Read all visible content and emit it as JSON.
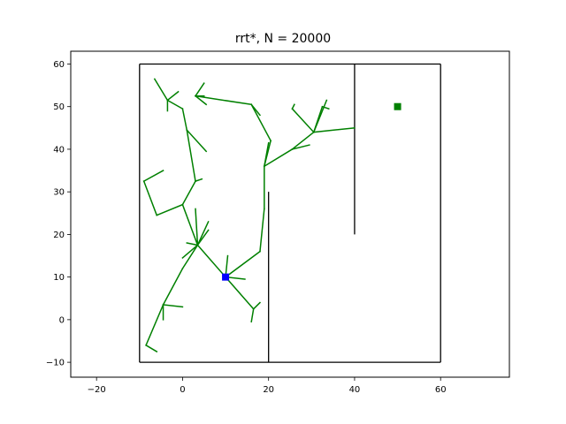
{
  "chart_data": {
    "type": "line",
    "title": "rrt*, N = 20000",
    "xlabel": "",
    "ylabel": "",
    "xlim": [
      -26,
      76
    ],
    "ylim": [
      -13.5,
      63
    ],
    "xticks": [
      -20,
      0,
      20,
      40,
      60
    ],
    "yticks": [
      -10,
      0,
      10,
      20,
      30,
      40,
      50,
      60
    ],
    "grid": false,
    "colors": {
      "tree": "#008000",
      "obstacle": "#000000",
      "start": "#0000ff",
      "goal": "#008000"
    },
    "obstacles": [
      {
        "name": "boundary-bottom",
        "points": [
          [
            -10,
            -10
          ],
          [
            60,
            -10
          ]
        ]
      },
      {
        "name": "boundary-top",
        "points": [
          [
            -10,
            60
          ],
          [
            60,
            60
          ]
        ]
      },
      {
        "name": "boundary-left",
        "points": [
          [
            -10,
            -10
          ],
          [
            -10,
            60
          ]
        ]
      },
      {
        "name": "boundary-right",
        "points": [
          [
            60,
            -10
          ],
          [
            60,
            60
          ]
        ]
      },
      {
        "name": "wall-x20",
        "points": [
          [
            20,
            -10
          ],
          [
            20,
            30
          ]
        ]
      },
      {
        "name": "wall-x40",
        "points": [
          [
            40,
            20
          ],
          [
            40,
            60
          ]
        ]
      }
    ],
    "tree_edges": [
      [
        [
          10,
          10
        ],
        [
          3.5,
          17.5
        ]
      ],
      [
        [
          3.5,
          17.5
        ],
        [
          0,
          12
        ]
      ],
      [
        [
          0,
          12
        ],
        [
          -4.5,
          3.5
        ]
      ],
      [
        [
          -4.5,
          3.5
        ],
        [
          -8.5,
          -6
        ]
      ],
      [
        [
          -8.5,
          -6
        ],
        [
          -6,
          -7.5
        ]
      ],
      [
        [
          -4.5,
          3.5
        ],
        [
          0,
          3
        ]
      ],
      [
        [
          -4.5,
          3.5
        ],
        [
          -4.5,
          0
        ]
      ],
      [
        [
          3.5,
          17.5
        ],
        [
          0,
          27
        ]
      ],
      [
        [
          0,
          27
        ],
        [
          -6,
          24.5
        ]
      ],
      [
        [
          -6,
          24.5
        ],
        [
          -9,
          32.5
        ]
      ],
      [
        [
          -9,
          32.5
        ],
        [
          -4.5,
          35
        ]
      ],
      [
        [
          0,
          27
        ],
        [
          3,
          32.5
        ]
      ],
      [
        [
          3,
          32.5
        ],
        [
          4.5,
          33
        ]
      ],
      [
        [
          3,
          32.5
        ],
        [
          1,
          44.5
        ]
      ],
      [
        [
          1,
          44.5
        ],
        [
          5.5,
          39.5
        ]
      ],
      [
        [
          1,
          44.5
        ],
        [
          0,
          49.5
        ]
      ],
      [
        [
          0,
          49.5
        ],
        [
          -3.5,
          51.5
        ]
      ],
      [
        [
          -3.5,
          51.5
        ],
        [
          -6.5,
          56.5
        ]
      ],
      [
        [
          -3.5,
          51.5
        ],
        [
          -1,
          53.5
        ]
      ],
      [
        [
          -3.5,
          51.5
        ],
        [
          -3.5,
          49
        ]
      ],
      [
        [
          3.5,
          17.5
        ],
        [
          0,
          14.5
        ]
      ],
      [
        [
          3.5,
          17.5
        ],
        [
          1,
          18
        ]
      ],
      [
        [
          3.5,
          17.5
        ],
        [
          3,
          26
        ]
      ],
      [
        [
          3.5,
          17.5
        ],
        [
          6,
          23
        ]
      ],
      [
        [
          3.5,
          17.5
        ],
        [
          6,
          21
        ]
      ],
      [
        [
          10,
          10
        ],
        [
          10.5,
          15
        ]
      ],
      [
        [
          10,
          10
        ],
        [
          14.5,
          9.5
        ]
      ],
      [
        [
          10,
          10
        ],
        [
          16.5,
          2.5
        ]
      ],
      [
        [
          16.5,
          2.5
        ],
        [
          16,
          -0.5
        ]
      ],
      [
        [
          16.5,
          2.5
        ],
        [
          18,
          4
        ]
      ],
      [
        [
          10,
          10
        ],
        [
          18,
          16
        ]
      ],
      [
        [
          18,
          16
        ],
        [
          19,
          26
        ]
      ],
      [
        [
          19,
          26
        ],
        [
          19,
          36
        ]
      ],
      [
        [
          19,
          36
        ],
        [
          20.5,
          42
        ]
      ],
      [
        [
          20.5,
          42
        ],
        [
          16,
          50.5
        ]
      ],
      [
        [
          16,
          50.5
        ],
        [
          18,
          48
        ]
      ],
      [
        [
          16,
          50.5
        ],
        [
          3,
          52.5
        ]
      ],
      [
        [
          3,
          52.5
        ],
        [
          5.5,
          50.5
        ]
      ],
      [
        [
          3,
          52.5
        ],
        [
          5,
          52.5
        ]
      ],
      [
        [
          3,
          52.5
        ],
        [
          5,
          55.5
        ]
      ],
      [
        [
          19,
          36
        ],
        [
          20,
          41.5
        ]
      ],
      [
        [
          19,
          36
        ],
        [
          25.5,
          40
        ]
      ],
      [
        [
          25.5,
          40
        ],
        [
          29.5,
          41
        ]
      ],
      [
        [
          25.5,
          40
        ],
        [
          30.5,
          44
        ]
      ],
      [
        [
          30.5,
          44
        ],
        [
          40,
          45
        ]
      ],
      [
        [
          30.5,
          44
        ],
        [
          25.5,
          49.5
        ]
      ],
      [
        [
          25.5,
          49.5
        ],
        [
          26,
          50.5
        ]
      ],
      [
        [
          30.5,
          44
        ],
        [
          32.5,
          50
        ]
      ],
      [
        [
          32.5,
          50
        ],
        [
          34,
          49.5
        ]
      ],
      [
        [
          30.5,
          44
        ],
        [
          33.5,
          51.5
        ]
      ]
    ],
    "start": [
      10,
      10
    ],
    "goal": [
      50,
      50
    ]
  }
}
